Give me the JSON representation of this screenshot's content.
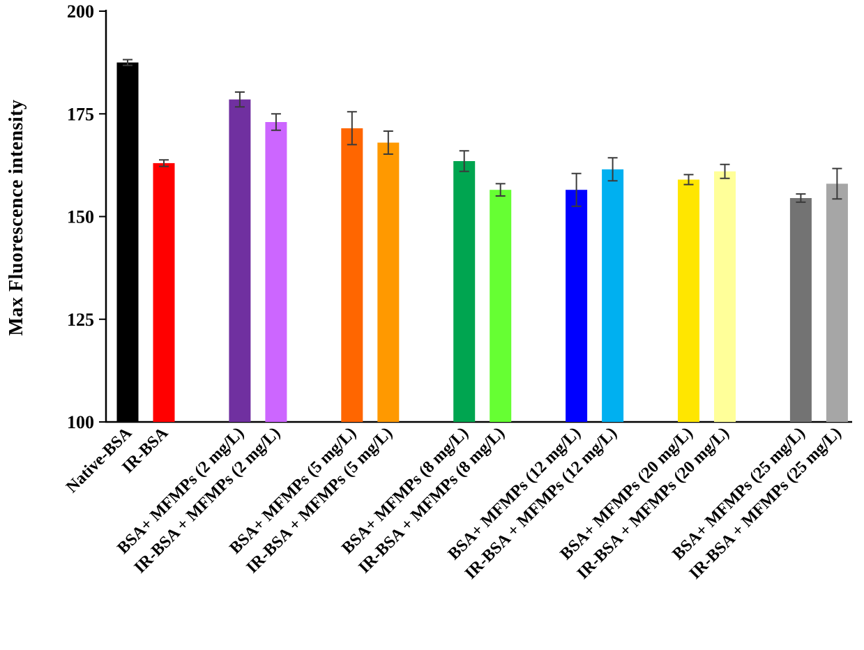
{
  "chart_data": {
    "type": "bar",
    "title": "",
    "xlabel": "",
    "ylabel": "Max  Fluorescence intensity",
    "ylim": [
      100,
      200
    ],
    "yticks": [
      100,
      125,
      150,
      175,
      200
    ],
    "grid": false,
    "legend": "none",
    "bars": [
      {
        "label": "Native-BSA",
        "value": 187.5,
        "error": 0.7,
        "color": "#000000",
        "group": 0
      },
      {
        "label": "IR-BSA",
        "value": 163.0,
        "error": 0.8,
        "color": "#FF0000",
        "group": 0
      },
      {
        "label": "BSA+ MFMPs (2 mg/L)",
        "value": 178.5,
        "error": 1.8,
        "color": "#7030A0",
        "group": 1
      },
      {
        "label": "IR-BSA + MFMPs (2 mg/L)",
        "value": 173.0,
        "error": 2.0,
        "color": "#CC66FF",
        "group": 1
      },
      {
        "label": "BSA+ MFMPs (5 mg/L)",
        "value": 171.5,
        "error": 4.0,
        "color": "#FF6600",
        "group": 2
      },
      {
        "label": "IR-BSA + MFMPs (5 mg/L)",
        "value": 168.0,
        "error": 2.8,
        "color": "#FF9900",
        "group": 2
      },
      {
        "label": "BSA+ MFMPs (8 mg/L)",
        "value": 163.5,
        "error": 2.5,
        "color": "#00A550",
        "group": 3
      },
      {
        "label": "IR-BSA + MFMPs (8 mg/L)",
        "value": 156.5,
        "error": 1.5,
        "color": "#66FF33",
        "group": 3
      },
      {
        "label": "BSA+ MFMPs (12 mg/L)",
        "value": 156.5,
        "error": 4.0,
        "color": "#0000FF",
        "group": 4
      },
      {
        "label": "IR-BSA + MFMPs (12 mg/L)",
        "value": 161.5,
        "error": 2.8,
        "color": "#00B0F0",
        "group": 4
      },
      {
        "label": "BSA+ MFMPs (20 mg/L)",
        "value": 159.0,
        "error": 1.2,
        "color": "#FFE600",
        "group": 5
      },
      {
        "label": "IR-BSA + MFMPs (20 mg/L)",
        "value": 161.0,
        "error": 1.7,
        "color": "#FFFF99",
        "group": 5
      },
      {
        "label": "BSA+ MFMPs (25 mg/L)",
        "value": 154.5,
        "error": 1.0,
        "color": "#737373",
        "group": 6
      },
      {
        "label": "IR-BSA + MFMPs (25 mg/L)",
        "value": 158.0,
        "error": 3.7,
        "color": "#A6A6A6",
        "group": 6
      }
    ]
  }
}
